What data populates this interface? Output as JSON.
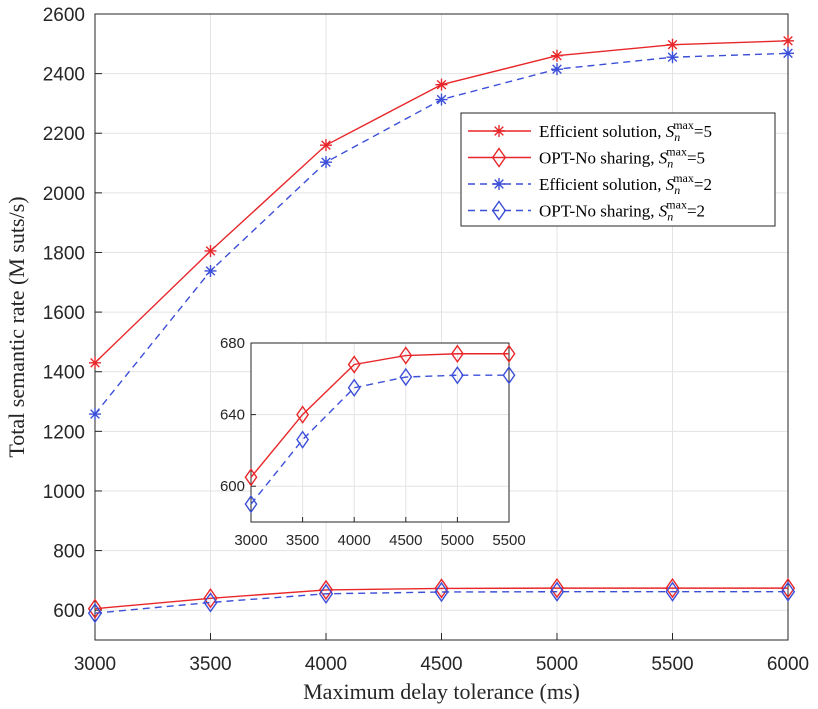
{
  "chart_data": [
    {
      "type": "line",
      "xlabel": "Maximum delay tolerance (ms)",
      "ylabel": "Total semantic rate (M suts/s)",
      "xlim": [
        3000,
        6000
      ],
      "ylim": [
        500,
        2600
      ],
      "xticks": [
        "3000",
        "3500",
        "4000",
        "4500",
        "5000",
        "5500",
        "6000"
      ],
      "yticks": [
        "600",
        "800",
        "1000",
        "1200",
        "1400",
        "1600",
        "1800",
        "2000",
        "2200",
        "2400",
        "2600"
      ],
      "grid": true,
      "legend_position": "top-right",
      "x": [
        3000,
        3500,
        4000,
        4500,
        5000,
        5500,
        6000
      ],
      "series": [
        {
          "name": "Efficient solution, S_n^max=5",
          "values": [
            1430,
            1805,
            2160,
            2363,
            2460,
            2497,
            2510
          ],
          "color": "#e8272a",
          "linestyle": "solid",
          "marker": "asterisk"
        },
        {
          "name": "OPT-No sharing, S_n^max=5",
          "values": [
            605,
            640,
            668,
            673,
            674,
            674,
            674
          ],
          "color": "#e8272a",
          "linestyle": "solid",
          "marker": "diamond"
        },
        {
          "name": "Efficient solution, S_n^max=2",
          "values": [
            1258,
            1738,
            2103,
            2313,
            2415,
            2455,
            2468
          ],
          "color": "#3c4fd8",
          "linestyle": "dashed",
          "marker": "asterisk"
        },
        {
          "name": "OPT-No sharing, S_n^max=2",
          "values": [
            590,
            626,
            655,
            661,
            662,
            662,
            662
          ],
          "color": "#3c4fd8",
          "linestyle": "dashed",
          "marker": "diamond"
        }
      ],
      "legend": [
        {
          "prefix": "Efficient solution, ",
          "suffix": "=5"
        },
        {
          "prefix": "OPT-No sharing, ",
          "suffix": "=5"
        },
        {
          "prefix": "Efficient solution, ",
          "suffix": "=2"
        },
        {
          "prefix": "OPT-No sharing, ",
          "suffix": "=2"
        }
      ],
      "legend_symbol": {
        "main": "S",
        "sub": "n",
        "sup": "max"
      }
    },
    {
      "type": "line",
      "role": "inset",
      "xlim": [
        3000,
        5500
      ],
      "ylim": [
        580,
        680
      ],
      "xticks": [
        "3000",
        "3500",
        "4000",
        "4500",
        "5000",
        "5500"
      ],
      "yticks": [
        "600",
        "640",
        "680"
      ],
      "x": [
        3000,
        3500,
        4000,
        4500,
        5000,
        5500
      ],
      "series": [
        {
          "values": [
            605,
            640,
            668,
            673,
            674,
            674
          ],
          "color": "#e8272a",
          "linestyle": "solid",
          "marker": "diamond"
        },
        {
          "values": [
            590,
            626,
            655,
            661,
            662,
            662
          ],
          "color": "#3c4fd8",
          "linestyle": "dashed",
          "marker": "diamond"
        }
      ]
    }
  ]
}
